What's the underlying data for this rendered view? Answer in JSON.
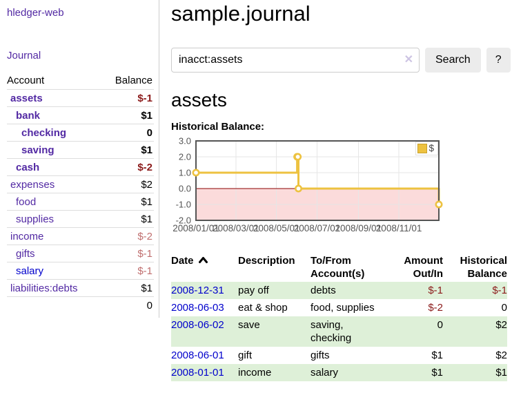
{
  "app": {
    "brand": "hledger-web"
  },
  "sidebar": {
    "nav_journal": "Journal",
    "accounts_table": {
      "col_account": "Account",
      "col_balance": "Balance",
      "rows": [
        {
          "account": "assets",
          "balance": "$-1",
          "depth": 1,
          "bold": true,
          "balance_style": "neg"
        },
        {
          "account": "bank",
          "balance": "$1",
          "depth": 2,
          "bold": true,
          "balance_style": ""
        },
        {
          "account": "checking",
          "balance": "0",
          "depth": 3,
          "bold": true,
          "balance_style": ""
        },
        {
          "account": "saving",
          "balance": "$1",
          "depth": 3,
          "bold": true,
          "balance_style": ""
        },
        {
          "account": "cash",
          "balance": "$-2",
          "depth": 2,
          "bold": true,
          "balance_style": "neg"
        },
        {
          "account": "expenses",
          "balance": "$2",
          "depth": 1,
          "bold": false,
          "balance_style": ""
        },
        {
          "account": "food",
          "balance": "$1",
          "depth": 2,
          "bold": false,
          "balance_style": ""
        },
        {
          "account": "supplies",
          "balance": "$1",
          "depth": 2,
          "bold": false,
          "balance_style": ""
        },
        {
          "account": "income",
          "balance": "$-2",
          "depth": 1,
          "bold": false,
          "balance_style": "negsoft"
        },
        {
          "account": "gifts",
          "balance": "$-1",
          "depth": 2,
          "bold": false,
          "balance_style": "negsoft"
        },
        {
          "account": "salary",
          "balance": "$-1",
          "depth": 2,
          "bold": false,
          "balance_style": "negsoft",
          "link_blue": true
        },
        {
          "account": "liabilities:debts",
          "balance": "$1",
          "depth": 1,
          "bold": false,
          "balance_style": ""
        }
      ],
      "total": "0"
    }
  },
  "header": {
    "title": "sample.journal"
  },
  "search": {
    "value": "inacct:assets",
    "clear_icon": "✕",
    "search_button": "Search",
    "help_button": "?"
  },
  "account_page": {
    "heading": "assets",
    "chart_label": "Historical Balance:"
  },
  "chart_data": {
    "type": "line",
    "title": "Historical Balance:",
    "step": true,
    "series": [
      {
        "name": "$",
        "points": [
          [
            "2008-01-01",
            1
          ],
          [
            "2008-06-01",
            2
          ],
          [
            "2008-06-02",
            2
          ],
          [
            "2008-06-03",
            0
          ],
          [
            "2008-12-31",
            -1
          ]
        ]
      }
    ],
    "x_range": [
      "2008-01-01",
      "2008-12-31"
    ],
    "x_tick_labels": [
      "2008/01/01",
      "2008/03/01",
      "2008/05/01",
      "2008/07/01",
      "2008/09/01",
      "2008/11/01"
    ],
    "y_ticks": [
      3.0,
      2.0,
      1.0,
      0.0,
      -1.0,
      -2.0
    ],
    "ylim": [
      -2,
      3
    ],
    "grid": true,
    "legend_position": "top-right",
    "colors": {
      "line": "#edc240",
      "marker_fill": "#ffffff",
      "negative_fill": "#fbdbdb",
      "zero_line": "#8b0000",
      "grid": "#e6e6e6",
      "border": "#545454",
      "tick_text": "#545454"
    }
  },
  "register": {
    "sort": {
      "column": "Date",
      "direction": "ascending"
    },
    "columns": [
      {
        "label": "Date",
        "sorted": true
      },
      {
        "label": "Description"
      },
      {
        "label": "To/From Account(s)"
      },
      {
        "label": "Amount Out/In",
        "align": "right"
      },
      {
        "label": "Historical Balance",
        "align": "right"
      }
    ],
    "rows": [
      {
        "date": "2008-12-31",
        "description": "pay off",
        "accounts": "debts",
        "amount": "$-1",
        "amount_negative": true,
        "balance": "$-1",
        "balance_negative": true
      },
      {
        "date": "2008-06-03",
        "description": "eat & shop",
        "accounts": "food, supplies",
        "amount": "$-2",
        "amount_negative": true,
        "balance": "0",
        "balance_negative": false
      },
      {
        "date": "2008-06-02",
        "description": "save",
        "accounts": "saving, checking",
        "amount": "0",
        "amount_negative": false,
        "balance": "$2",
        "balance_negative": false
      },
      {
        "date": "2008-06-01",
        "description": "gift",
        "accounts": "gifts",
        "amount": "$1",
        "amount_negative": false,
        "balance": "$2",
        "balance_negative": false
      },
      {
        "date": "2008-01-01",
        "description": "income",
        "accounts": "salary",
        "amount": "$1",
        "amount_negative": false,
        "balance": "$1",
        "balance_negative": false
      }
    ]
  },
  "colors": {
    "link_purple": "#5229a3",
    "link_blue": "#0000cc",
    "negative_strong": "#8b1a1a",
    "negative_soft": "#c06f6f",
    "row_green": "#def0d8"
  }
}
